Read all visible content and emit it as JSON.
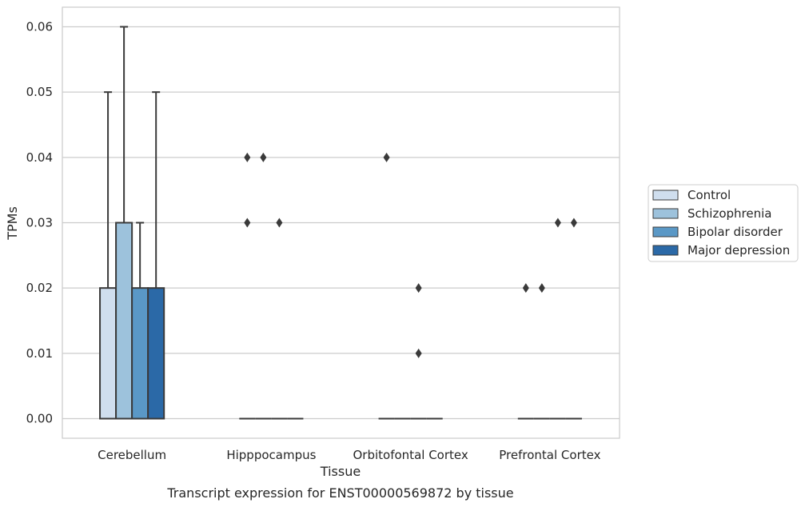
{
  "chart_data": {
    "type": "box",
    "categories": [
      "Cerebellum",
      "Hipppocampus",
      "Orbitofontal Cortex",
      "Prefrontal Cortex"
    ],
    "xlabel": "Tissue",
    "ylabel": "TPMs",
    "caption": "Transcript expression for ENST00000569872 by tissue",
    "ylim": [
      -0.003,
      0.063
    ],
    "yticks": [
      "0.00",
      "0.01",
      "0.02",
      "0.03",
      "0.04",
      "0.05",
      "0.06"
    ],
    "ytick_values": [
      0,
      0.01,
      0.02,
      0.03,
      0.04,
      0.05,
      0.06
    ],
    "grid": "horizontal",
    "legend_position": "outside-right",
    "series": [
      {
        "name": "Control",
        "color": "#cfdeee",
        "boxes": [
          {
            "q1": 0,
            "median": 0,
            "q3": 0.02,
            "whisker_low": 0,
            "whisker_high": 0.05,
            "outliers": []
          },
          {
            "q1": 0,
            "median": 0,
            "q3": 0,
            "whisker_low": 0,
            "whisker_high": 0,
            "outliers": [
              0.03,
              0.04
            ]
          },
          {
            "q1": 0,
            "median": 0,
            "q3": 0,
            "whisker_low": 0,
            "whisker_high": 0,
            "outliers": [
              0.04
            ]
          },
          {
            "q1": 0,
            "median": 0,
            "q3": 0,
            "whisker_low": 0,
            "whisker_high": 0,
            "outliers": [
              0.02
            ]
          }
        ]
      },
      {
        "name": "Schizophrenia",
        "color": "#9dc2dc",
        "boxes": [
          {
            "q1": 0,
            "median": 0,
            "q3": 0.03,
            "whisker_low": 0,
            "whisker_high": 0.06,
            "outliers": []
          },
          {
            "q1": 0,
            "median": 0,
            "q3": 0,
            "whisker_low": 0,
            "whisker_high": 0,
            "outliers": [
              0.04
            ]
          },
          {
            "q1": 0,
            "median": 0,
            "q3": 0,
            "whisker_low": 0,
            "whisker_high": 0,
            "outliers": []
          },
          {
            "q1": 0,
            "median": 0,
            "q3": 0,
            "whisker_low": 0,
            "whisker_high": 0,
            "outliers": [
              0.02
            ]
          }
        ]
      },
      {
        "name": "Bipolar disorder",
        "color": "#5a98c6",
        "boxes": [
          {
            "q1": 0,
            "median": 0,
            "q3": 0.02,
            "whisker_low": 0,
            "whisker_high": 0.03,
            "outliers": []
          },
          {
            "q1": 0,
            "median": 0,
            "q3": 0,
            "whisker_low": 0,
            "whisker_high": 0,
            "outliers": [
              0.03
            ]
          },
          {
            "q1": 0,
            "median": 0,
            "q3": 0,
            "whisker_low": 0,
            "whisker_high": 0,
            "outliers": [
              0.01,
              0.02
            ]
          },
          {
            "q1": 0,
            "median": 0,
            "q3": 0,
            "whisker_low": 0,
            "whisker_high": 0,
            "outliers": [
              0.03
            ]
          }
        ]
      },
      {
        "name": "Major depression",
        "color": "#2b69a7",
        "boxes": [
          {
            "q1": 0,
            "median": 0,
            "q3": 0.02,
            "whisker_low": 0,
            "whisker_high": 0.05,
            "outliers": []
          },
          {
            "q1": 0,
            "median": 0,
            "q3": 0,
            "whisker_low": 0,
            "whisker_high": 0,
            "outliers": []
          },
          {
            "q1": 0,
            "median": 0,
            "q3": 0,
            "whisker_low": 0,
            "whisker_high": 0,
            "outliers": []
          },
          {
            "q1": 0,
            "median": 0,
            "q3": 0,
            "whisker_low": 0,
            "whisker_high": 0,
            "outliers": [
              0.03
            ]
          }
        ]
      }
    ]
  }
}
